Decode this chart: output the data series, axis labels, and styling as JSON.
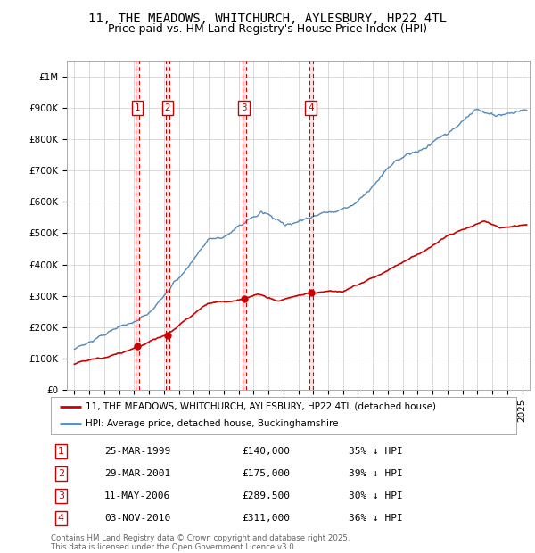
{
  "title": "11, THE MEADOWS, WHITCHURCH, AYLESBURY, HP22 4TL",
  "subtitle": "Price paid vs. HM Land Registry's House Price Index (HPI)",
  "ylim": [
    0,
    1050000
  ],
  "yticks": [
    0,
    100000,
    200000,
    300000,
    400000,
    500000,
    600000,
    700000,
    800000,
    900000,
    1000000
  ],
  "ytick_labels": [
    "£0",
    "£100K",
    "£200K",
    "£300K",
    "£400K",
    "£500K",
    "£600K",
    "£700K",
    "£800K",
    "£900K",
    "£1M"
  ],
  "xlim_start": 1994.5,
  "xlim_end": 2025.5,
  "hpi_color": "#5588bb",
  "price_color": "#cc0000",
  "vline_color": "#cc0000",
  "vspan_color": "#ffdddd",
  "background_color": "#ffffff",
  "grid_color": "#cccccc",
  "sales": [
    {
      "label": "1",
      "date_num": 1999.23,
      "price": 140000,
      "text": "25-MAR-1999",
      "amount": "£140,000",
      "pct": "35% ↓ HPI"
    },
    {
      "label": "2",
      "date_num": 2001.24,
      "price": 175000,
      "text": "29-MAR-2001",
      "amount": "£175,000",
      "pct": "39% ↓ HPI"
    },
    {
      "label": "3",
      "date_num": 2006.36,
      "price": 289500,
      "text": "11-MAY-2006",
      "amount": "£289,500",
      "pct": "30% ↓ HPI"
    },
    {
      "label": "4",
      "date_num": 2010.84,
      "price": 311000,
      "text": "03-NOV-2010",
      "amount": "£311,000",
      "pct": "36% ↓ HPI"
    }
  ],
  "legend_entries": [
    "11, THE MEADOWS, WHITCHURCH, AYLESBURY, HP22 4TL (detached house)",
    "HPI: Average price, detached house, Buckinghamshire"
  ],
  "footnote1": "Contains HM Land Registry data © Crown copyright and database right 2025.",
  "footnote2": "This data is licensed under the Open Government Licence v3.0.",
  "title_fontsize": 10,
  "subtitle_fontsize": 9,
  "tick_fontsize": 7.5,
  "label_fontsize": 8
}
